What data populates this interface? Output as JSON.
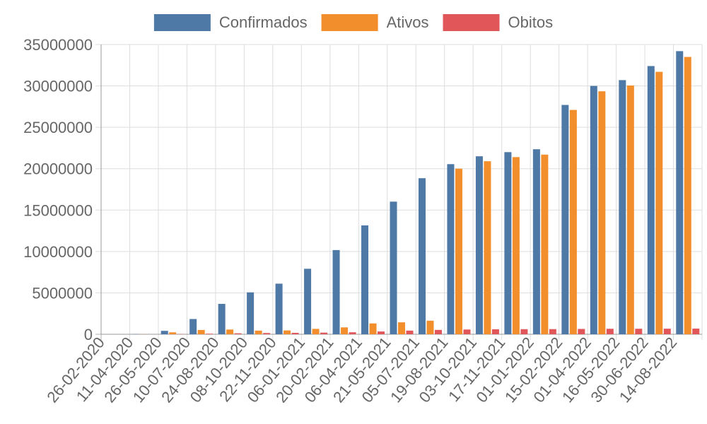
{
  "chart_data": {
    "type": "bar",
    "categories": [
      "26-02-2020",
      "11-04-2020",
      "26-05-2020",
      "10-07-2020",
      "24-08-2020",
      "08-10-2020",
      "22-11-2020",
      "06-01-2021",
      "20-02-2021",
      "06-04-2021",
      "21-05-2021",
      "05-07-2021",
      "19-08-2021",
      "03-10-2021",
      "17-11-2021",
      "01-01-2022",
      "15-02-2022",
      "01-04-2022",
      "16-05-2022",
      "30-06-2022",
      "14-08-2022"
    ],
    "series": [
      {
        "name": "Confirmados",
        "color": "#4e79a7",
        "values": [
          0,
          20000,
          410000,
          1840000,
          3670000,
          5060000,
          6110000,
          7910000,
          10170000,
          13150000,
          16020000,
          18850000,
          20550000,
          21500000,
          22000000,
          22350000,
          27700000,
          30000000,
          30700000,
          32400000,
          34200000
        ]
      },
      {
        "name": "Ativos",
        "color": "#f28e2b",
        "values": [
          0,
          10000,
          230000,
          520000,
          570000,
          440000,
          460000,
          650000,
          830000,
          1310000,
          1440000,
          1640000,
          20000000,
          20900000,
          21400000,
          21700000,
          27100000,
          29350000,
          30050000,
          31700000,
          33500000
        ]
      },
      {
        "name": "Obitos",
        "color": "#e15759",
        "values": [
          0,
          1000,
          24000,
          70000,
          115000,
          150000,
          169000,
          198000,
          240000,
          335000,
          440000,
          525000,
          572000,
          599000,
          612000,
          619000,
          640000,
          660000,
          665000,
          672000,
          682000
        ]
      }
    ],
    "yticks": [
      "0",
      "5000000",
      "10000000",
      "15000000",
      "20000000",
      "25000000",
      "30000000",
      "35000000"
    ],
    "ylim": [
      0,
      35000000
    ],
    "grid": true,
    "legend_position": "top-center",
    "title": "",
    "xlabel": "",
    "ylabel": ""
  }
}
